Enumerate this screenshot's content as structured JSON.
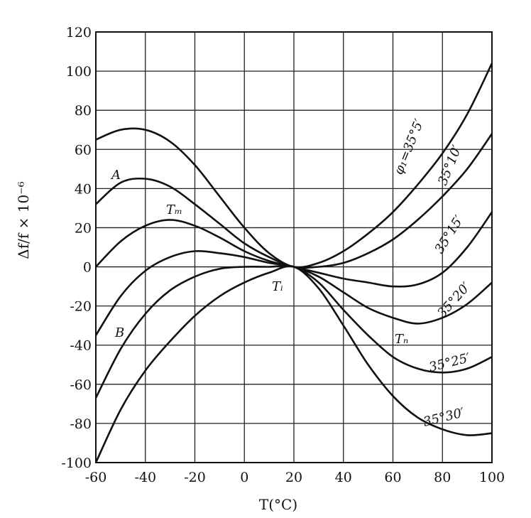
{
  "chart_data": {
    "type": "line",
    "xlabel": "T(°C)",
    "ylabel": "Δf/f × 10⁻⁶",
    "xlim": [
      -60,
      100
    ],
    "ylim": [
      -100,
      120
    ],
    "xticks": [
      "-60",
      "-40",
      "-20",
      "0",
      "20",
      "40",
      "60",
      "80",
      "100"
    ],
    "yticks": [
      "120",
      "100",
      "80",
      "60",
      "40",
      "20",
      "0",
      "-20",
      "-40",
      "-60",
      "-80",
      "-100"
    ],
    "grid": true,
    "series": [
      {
        "name": "φ₁=35°5′",
        "x": [
          -60,
          -50,
          -40,
          -30,
          -20,
          -10,
          0,
          10,
          20,
          30,
          40,
          50,
          60,
          70,
          80,
          90,
          100
        ],
        "y": [
          65,
          70,
          70,
          64,
          52,
          36,
          20,
          7,
          0,
          2,
          8,
          17,
          28,
          42,
          58,
          78,
          104
        ]
      },
      {
        "name": "35°10′",
        "x": [
          -60,
          -50,
          -40,
          -30,
          -20,
          -10,
          0,
          10,
          20,
          30,
          40,
          50,
          60,
          70,
          80,
          90,
          100
        ],
        "y": [
          32,
          43,
          45,
          41,
          32,
          22,
          12,
          5,
          0,
          0,
          2,
          7,
          14,
          24,
          36,
          50,
          68
        ]
      },
      {
        "name": "35°15′",
        "x": [
          -60,
          -50,
          -40,
          -30,
          -20,
          -10,
          0,
          10,
          20,
          30,
          40,
          50,
          60,
          70,
          80,
          90,
          100
        ],
        "y": [
          0,
          13,
          21,
          24,
          21,
          15,
          8,
          3,
          0,
          -3,
          -6,
          -8,
          -10,
          -9,
          -3,
          10,
          28
        ]
      },
      {
        "name": "35°20′",
        "x": [
          -60,
          -50,
          -40,
          -30,
          -20,
          -10,
          0,
          10,
          20,
          30,
          40,
          50,
          60,
          70,
          80,
          90,
          100
        ],
        "y": [
          -35,
          -15,
          -2,
          5,
          8,
          7,
          5,
          2,
          0,
          -5,
          -13,
          -21,
          -26,
          -29,
          -26,
          -19,
          -8
        ]
      },
      {
        "name": "35°25′",
        "x": [
          -60,
          -50,
          -40,
          -30,
          -20,
          -10,
          0,
          10,
          20,
          30,
          40,
          50,
          60,
          70,
          80,
          90,
          100
        ],
        "y": [
          -67,
          -42,
          -24,
          -12,
          -5,
          -1,
          0,
          0,
          0,
          -8,
          -22,
          -35,
          -46,
          -52,
          -54,
          -52,
          -46
        ]
      },
      {
        "name": "35°30′",
        "x": [
          -60,
          -50,
          -40,
          -30,
          -20,
          -10,
          0,
          10,
          20,
          30,
          40,
          50,
          60,
          70,
          80,
          90,
          100
        ],
        "y": [
          -100,
          -73,
          -53,
          -38,
          -25,
          -15,
          -8,
          -3,
          0,
          -11,
          -30,
          -50,
          -66,
          -77,
          -83,
          -86,
          -85
        ]
      }
    ],
    "curve_labels": {
      "A": "A",
      "Tm": "Tₘ",
      "B": "B",
      "Ti": "Tᵢ",
      "Tn": "Tₙ"
    }
  }
}
